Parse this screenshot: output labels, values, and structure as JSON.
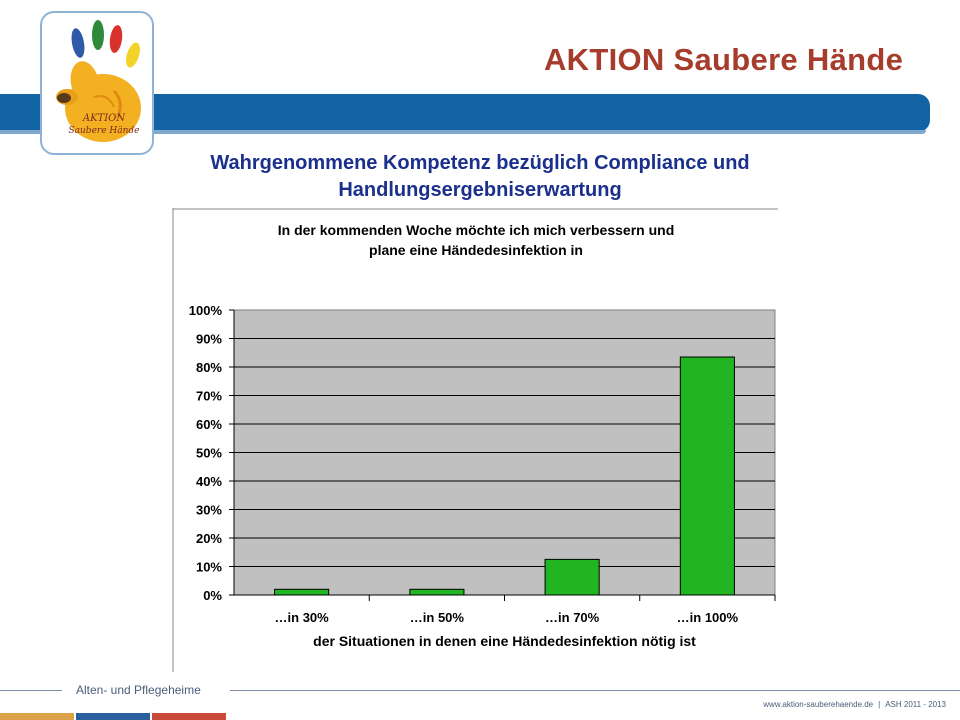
{
  "header": {
    "brand": "AKTION Saubere Hände",
    "logo_text_line1": "AKTION",
    "logo_text_line2": "Saubere Hände",
    "colors": {
      "band": "#1163a4",
      "brand_text": "#a63d2c",
      "title": "#1b2f8c"
    }
  },
  "slide": {
    "title_line1": "Wahrgenommene Kompetenz bezüglich Compliance und",
    "title_line2": "Handlungsergebniserwartung"
  },
  "chart_data": {
    "type": "bar",
    "title_lines": [
      "In der kommenden Woche möchte ich mich verbessern und",
      "plane eine Händedesinfektion in"
    ],
    "categories": [
      "…in 30%",
      "…in 50%",
      "…in 70%",
      "…in 100%"
    ],
    "values": [
      2,
      2,
      12.5,
      83.5
    ],
    "xlabel": "der Situationen in denen eine Händedesinfektion nötig ist",
    "ylabel": "",
    "ylim": [
      0,
      100
    ],
    "yticks": [
      "0%",
      "10%",
      "20%",
      "30%",
      "40%",
      "50%",
      "60%",
      "70%",
      "80%",
      "90%",
      "100%"
    ],
    "grid": true,
    "bar_color": "#22b522",
    "plot_background": "#c0c0c0"
  },
  "footer": {
    "section": "Alten- und Pflegeheime",
    "website": "www.aktion-sauberehaende.de",
    "separator": "|",
    "edition": "ASH 2011 - 2013",
    "strip_colors": [
      "#dba24a",
      "#2c5f9e",
      "#c94a3a"
    ]
  }
}
